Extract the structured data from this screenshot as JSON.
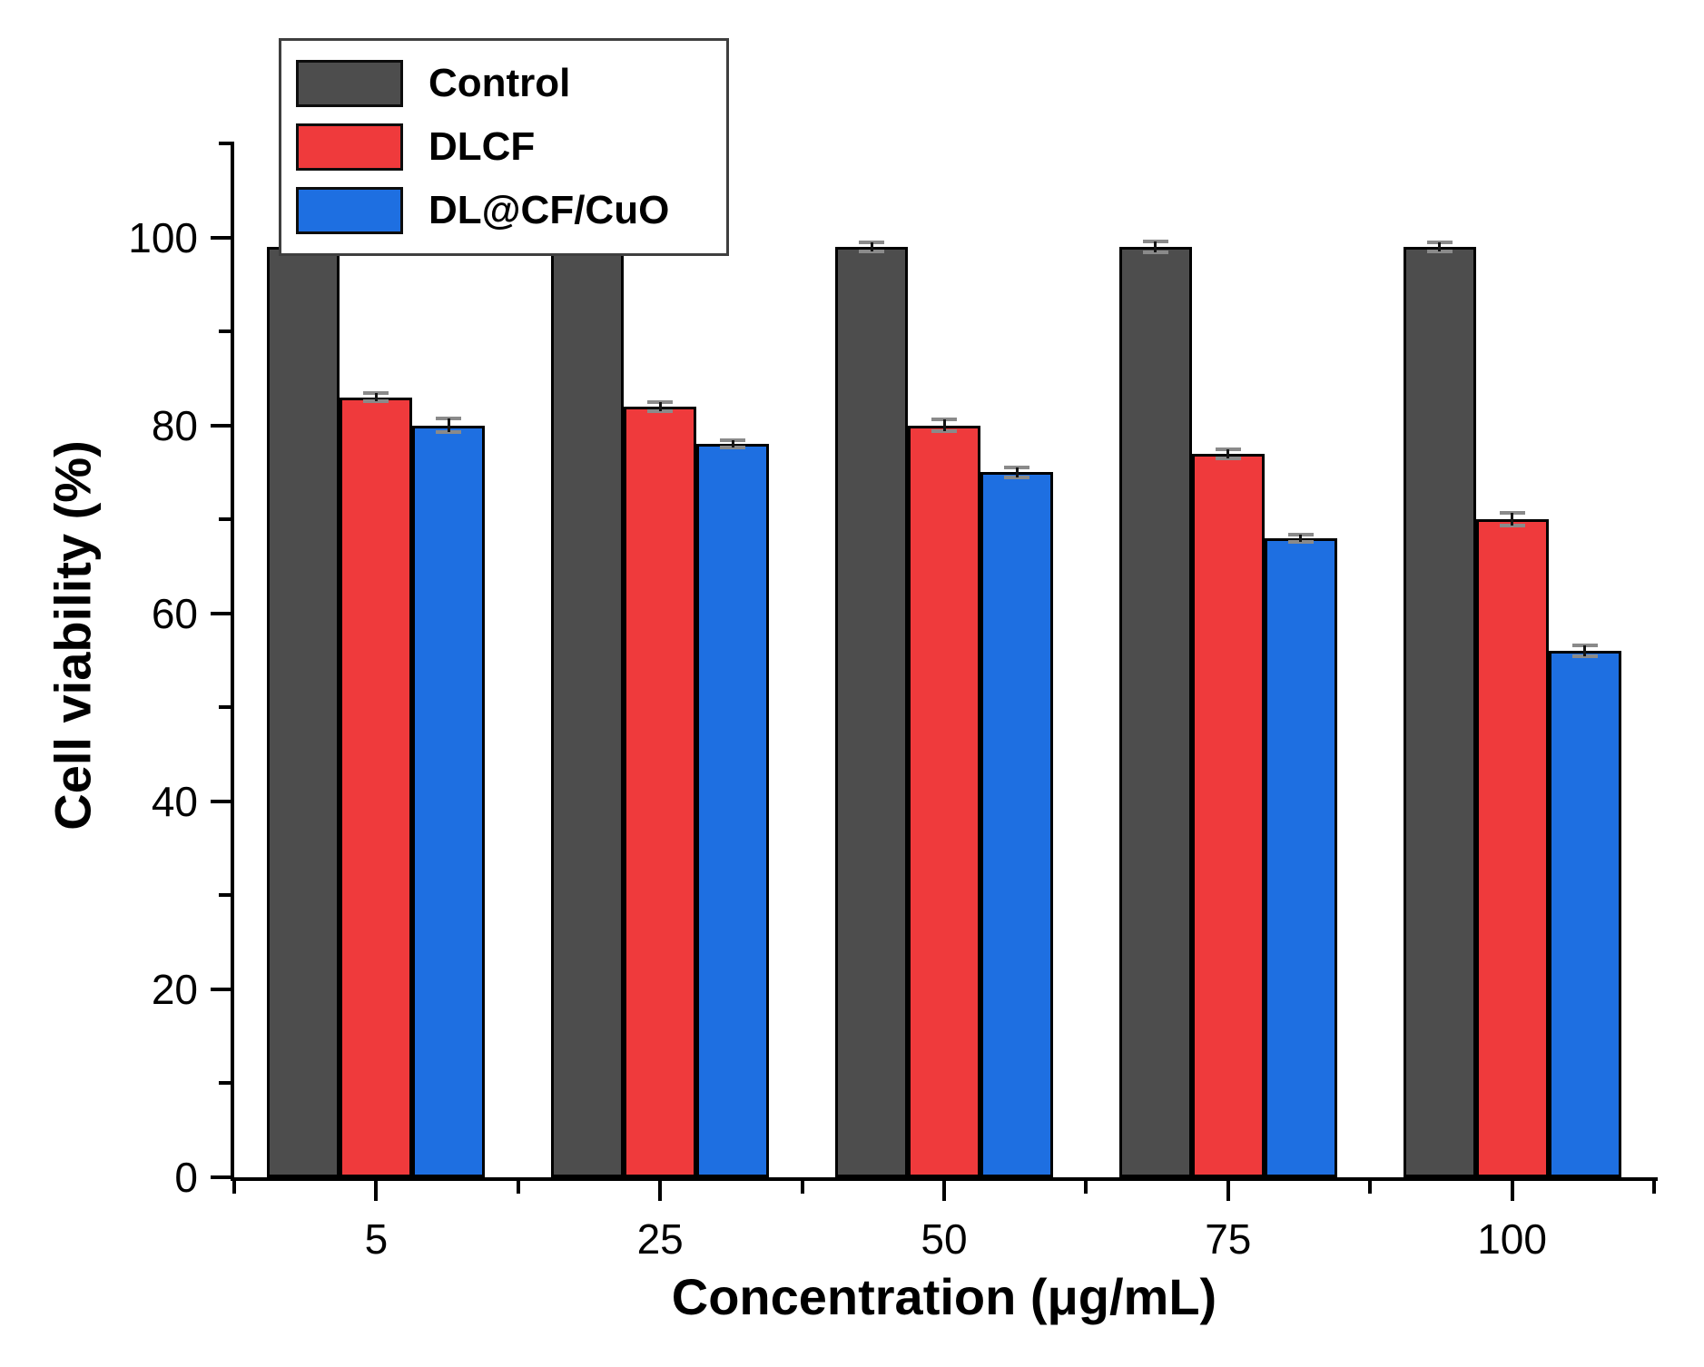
{
  "figure": {
    "background": "#ffffff"
  },
  "chart_data": {
    "type": "bar",
    "title": "",
    "xlabel": "Concentration (μg/mL)",
    "ylabel": "Cell viability (%)",
    "categories": [
      "5",
      "25",
      "50",
      "75",
      "100"
    ],
    "series": [
      {
        "name": "Control",
        "color": "#4d4d4d",
        "values": [
          99,
          99,
          99,
          99,
          99
        ],
        "errors": [
          0.5,
          0.6,
          0.5,
          0.6,
          0.5
        ]
      },
      {
        "name": "DLCF",
        "color": "#ef3a3c",
        "values": [
          83,
          82,
          80,
          77,
          70
        ],
        "errors": [
          0.4,
          0.5,
          0.6,
          0.5,
          0.7
        ]
      },
      {
        "name": "DL@CF/CuO",
        "color": "#1e6fe1",
        "values": [
          80,
          78,
          75,
          68,
          56
        ],
        "errors": [
          0.7,
          0.4,
          0.5,
          0.4,
          0.6
        ]
      }
    ],
    "ylim": [
      0,
      110
    ],
    "yticks_major": [
      0,
      20,
      40,
      60,
      80,
      100
    ],
    "yticks_minor": [
      10,
      30,
      50,
      70,
      90,
      110
    ],
    "legend_position": "top-left",
    "grid": false,
    "bar_outline_color": "#000000",
    "error_cap_color": "#8a8a8a",
    "axis_color": "#000000"
  }
}
